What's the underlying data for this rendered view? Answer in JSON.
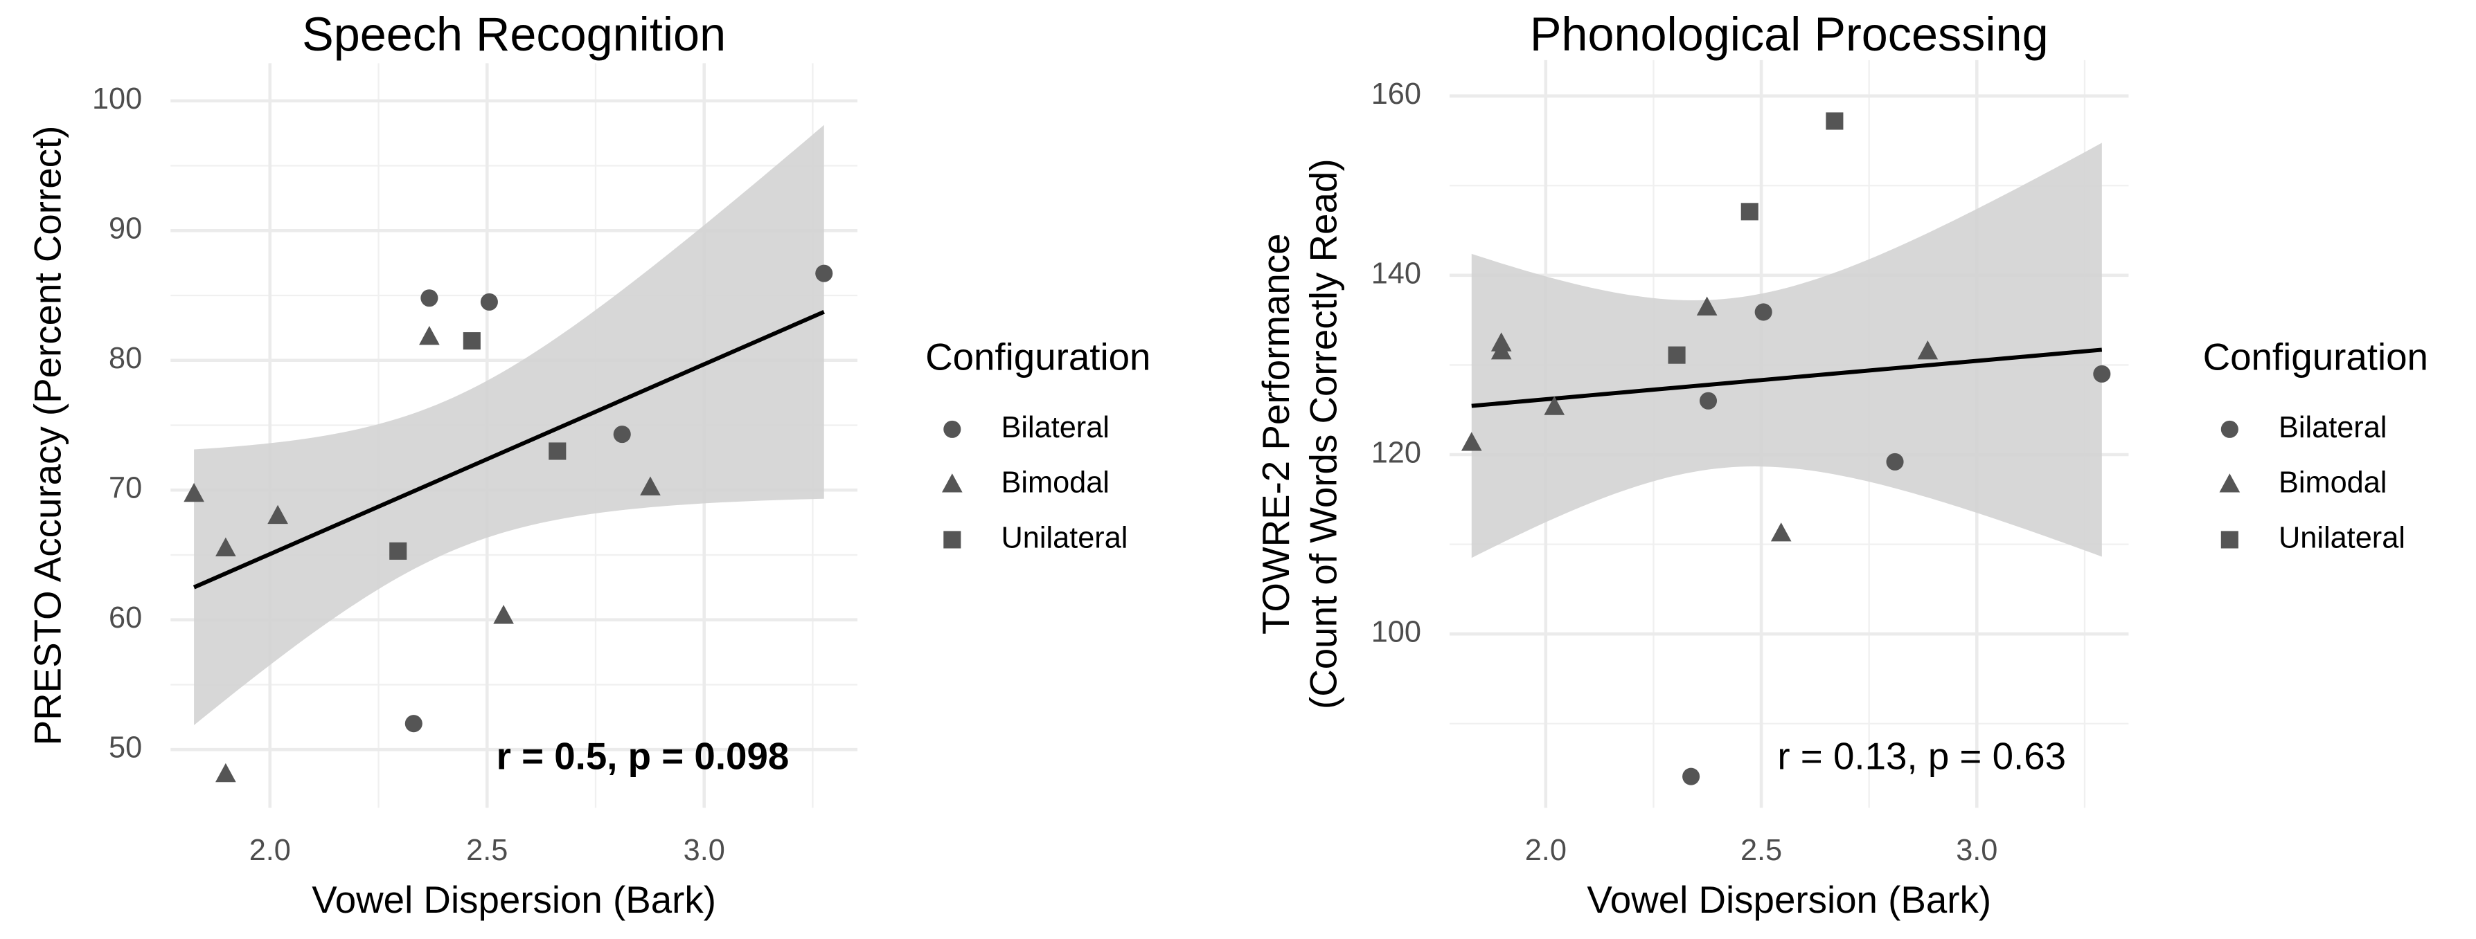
{
  "chart_data": [
    {
      "type": "scatter",
      "title": "Speech Recognition",
      "xlabel": "Vowel Dispersion (Bark)",
      "ylabel": "PRESTO Accuracy (Percent Correct)",
      "xlim": [
        1.771,
        3.353
      ],
      "ylim": [
        45.5,
        102.9
      ],
      "xticks": [
        {
          "value": 2,
          "label": "2.0"
        },
        {
          "value": 2.5,
          "label": "2.5"
        },
        {
          "value": 3,
          "label": "3.0"
        }
      ],
      "yticks": [
        50,
        60,
        70,
        80,
        90,
        100
      ],
      "grid": true,
      "fit_line": true,
      "legend": {
        "title": "Configuration",
        "position": "right"
      },
      "annotation": {
        "text": "r = 0.5, p = 0.098",
        "bold": true
      },
      "series": [
        {
          "name": "Bilateral",
          "shape": "circle",
          "color": "#555555",
          "x": [
            2.367,
            2.505,
            3.276,
            2.811,
            2.331
          ],
          "values": [
            84.8,
            84.5,
            86.7,
            74.3,
            52.0
          ]
        },
        {
          "name": "Bimodal",
          "shape": "triangle",
          "color": "#555555",
          "x": [
            1.825,
            1.898,
            2.018,
            1.898,
            2.367,
            2.538,
            2.876
          ],
          "values": [
            69.7,
            65.5,
            68.0,
            48.1,
            81.8,
            60.3,
            70.2
          ]
        },
        {
          "name": "Unilateral",
          "shape": "square",
          "color": "#555555",
          "x": [
            2.465,
            2.295,
            2.662
          ],
          "values": [
            81.5,
            65.3,
            73.0
          ]
        }
      ]
    },
    {
      "type": "scatter",
      "title": "Phonological Processing",
      "xlabel": "Vowel Dispersion (Bark)",
      "ylabel": [
        "TOWRE-2 Performance",
        "(Count of Words Correctly Read)"
      ],
      "xlim": [
        1.777,
        3.352
      ],
      "ylim": [
        80.6,
        164
      ],
      "xticks": [
        {
          "value": 2,
          "label": "2.0"
        },
        {
          "value": 2.5,
          "label": "2.5"
        },
        {
          "value": 3,
          "label": "3.0"
        }
      ],
      "yticks": [
        100,
        120,
        140,
        160
      ],
      "grid": true,
      "fit_line": true,
      "legend": {
        "title": "Configuration",
        "position": "right"
      },
      "annotation": {
        "text": "r = 0.13, p = 0.63",
        "bold": false
      },
      "series": [
        {
          "name": "Bilateral",
          "shape": "circle",
          "color": "#555555",
          "x": [
            2.377,
            2.505,
            3.29,
            2.81,
            2.337
          ],
          "values": [
            126.0,
            135.9,
            129.0,
            119.2,
            84.1
          ]
        },
        {
          "name": "Bimodal",
          "shape": "triangle",
          "color": "#555555",
          "x": [
            1.828,
            1.897,
            1.897,
            2.02,
            2.374,
            2.546,
            2.886
          ],
          "values": [
            121.3,
            132.4,
            131.5,
            125.3,
            136.4,
            111.2,
            131.5
          ]
        },
        {
          "name": "Unilateral",
          "shape": "square",
          "color": "#555555",
          "x": [
            2.473,
            2.304,
            2.67
          ],
          "values": [
            147.1,
            131.1,
            157.2
          ]
        }
      ]
    }
  ]
}
